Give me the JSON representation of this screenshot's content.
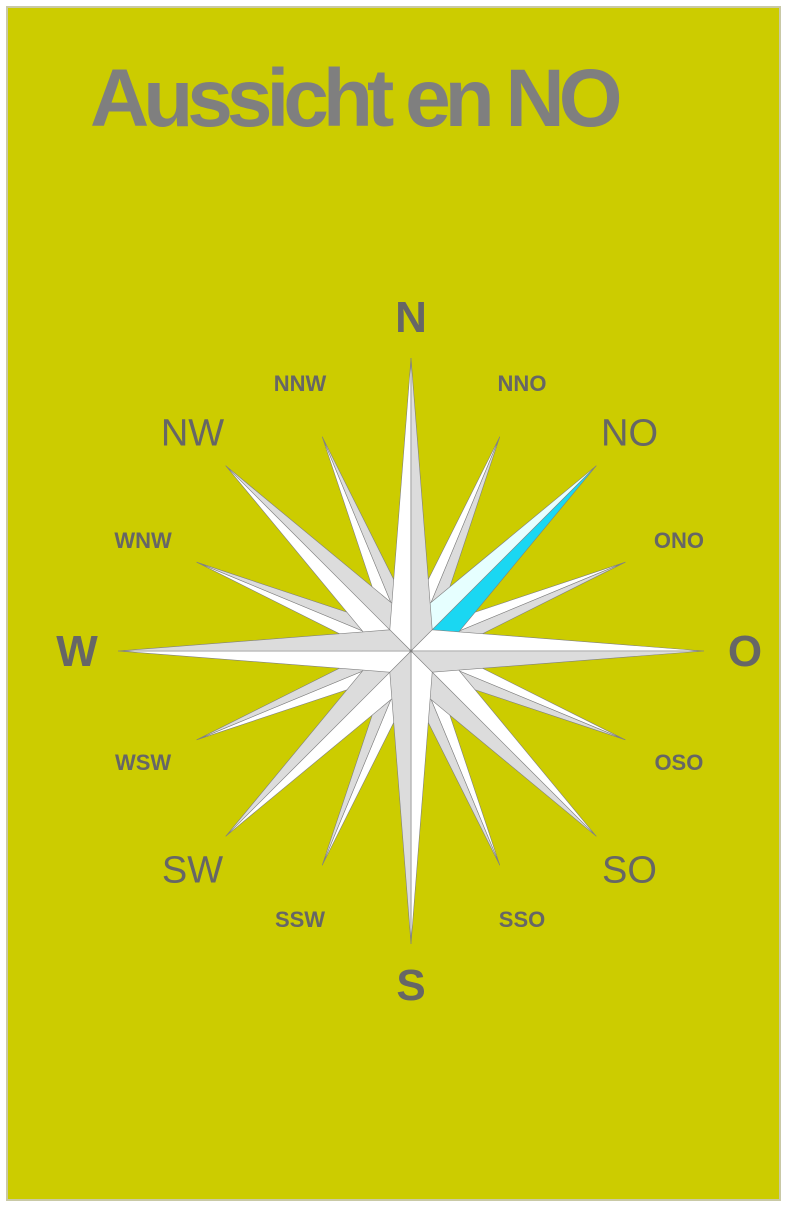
{
  "title": "Aussicht en NO",
  "highlight_direction": "NO",
  "colors": {
    "background": "#cccc00",
    "text": "#666666",
    "title": "#7f7f7f",
    "point_light": "#ffffff",
    "point_shade": "#dcdcdc",
    "point_edge": "#808080",
    "highlight_light": "#e6ffff",
    "highlight_dark": "#1ad7f2"
  },
  "directions": [
    {
      "key": "N",
      "label": "N",
      "bearing": 0,
      "tier": "cardinal"
    },
    {
      "key": "NNO",
      "label": "NNO",
      "bearing": 22.5,
      "tier": "minor"
    },
    {
      "key": "NO",
      "label": "NO",
      "bearing": 45,
      "tier": "intercardinal"
    },
    {
      "key": "ONO",
      "label": "ONO",
      "bearing": 67.5,
      "tier": "minor"
    },
    {
      "key": "O",
      "label": "O",
      "bearing": 90,
      "tier": "cardinal"
    },
    {
      "key": "OSO",
      "label": "OSO",
      "bearing": 112.5,
      "tier": "minor"
    },
    {
      "key": "SO",
      "label": "SO",
      "bearing": 135,
      "tier": "intercardinal"
    },
    {
      "key": "SSO",
      "label": "SSO",
      "bearing": 157.5,
      "tier": "minor"
    },
    {
      "key": "S",
      "label": "S",
      "bearing": 180,
      "tier": "cardinal"
    },
    {
      "key": "SSW",
      "label": "SSW",
      "bearing": 202.5,
      "tier": "minor"
    },
    {
      "key": "SW",
      "label": "SW",
      "bearing": 225,
      "tier": "intercardinal"
    },
    {
      "key": "WSW",
      "label": "WSW",
      "bearing": 247.5,
      "tier": "minor"
    },
    {
      "key": "W",
      "label": "W",
      "bearing": 270,
      "tier": "cardinal"
    },
    {
      "key": "WNW",
      "label": "WNW",
      "bearing": 292.5,
      "tier": "minor"
    },
    {
      "key": "NW",
      "label": "NW",
      "bearing": 315,
      "tier": "intercardinal"
    },
    {
      "key": "NNW",
      "label": "NNW",
      "bearing": 337.5,
      "tier": "minor"
    }
  ]
}
